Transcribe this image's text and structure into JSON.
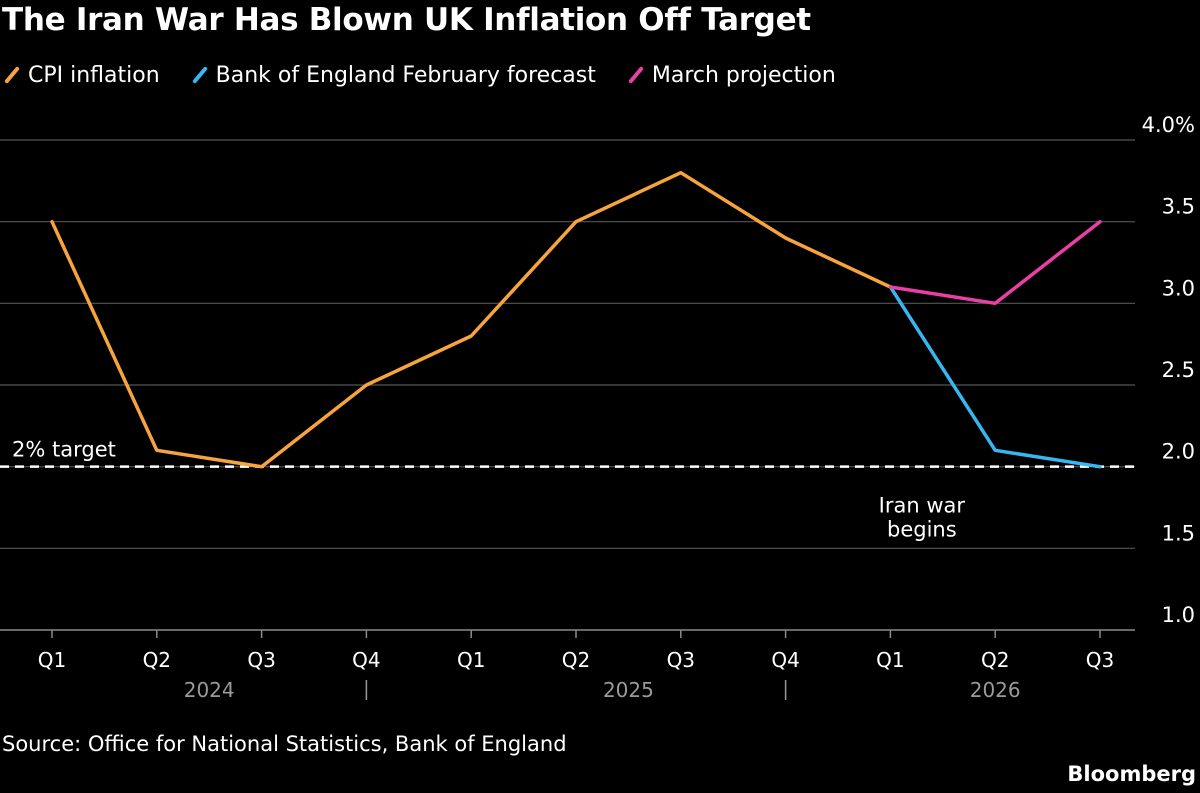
{
  "title": "The Iran War Has Blown UK Inflation Off Target",
  "legend": [
    {
      "label": "CPI inflation",
      "color": "#f7a43c"
    },
    {
      "label": "Bank of England February forecast",
      "color": "#38b6f0"
    },
    {
      "label": "March projection",
      "color": "#ea3fa6"
    }
  ],
  "source": "Source: Office for National Statistics, Bank of England",
  "brand": "Bloomberg",
  "chart_data": {
    "type": "line",
    "categories": [
      "Q1",
      "Q2",
      "Q3",
      "Q4",
      "Q1",
      "Q2",
      "Q3",
      "Q4",
      "Q1",
      "Q2",
      "Q3"
    ],
    "years": [
      {
        "label": "2024",
        "start": 0,
        "end": 3
      },
      {
        "label": "2025",
        "start": 4,
        "end": 7
      },
      {
        "label": "2026",
        "start": 8,
        "end": 10
      }
    ],
    "year_separators_after": [
      3,
      7
    ],
    "ylim": [
      1.0,
      4.0
    ],
    "yticks": [
      1.0,
      1.5,
      2.0,
      2.5,
      3.0,
      3.5,
      4.0
    ],
    "ytick_labels": [
      "1.0",
      "1.5",
      "2.0",
      "2.5",
      "3.0",
      "3.5",
      "4.0%"
    ],
    "series": [
      {
        "name": "CPI inflation",
        "color": "#f7a43c",
        "x": [
          0,
          1,
          2,
          3,
          4,
          5,
          6,
          7,
          8
        ],
        "values": [
          3.5,
          2.1,
          2.0,
          2.5,
          2.8,
          3.5,
          3.8,
          3.4,
          3.1
        ]
      },
      {
        "name": "Bank of England February forecast",
        "color": "#38b6f0",
        "x": [
          8,
          9,
          10
        ],
        "values": [
          3.1,
          2.1,
          2.0
        ]
      },
      {
        "name": "March projection",
        "color": "#ea3fa6",
        "x": [
          8,
          9,
          10
        ],
        "values": [
          3.1,
          3.0,
          3.5
        ]
      }
    ],
    "target": {
      "value": 2.0,
      "label": "2% target"
    },
    "annotations": [
      {
        "lines": [
          "Iran war",
          "begins"
        ],
        "x": 8.3,
        "y": 1.72
      }
    ]
  }
}
